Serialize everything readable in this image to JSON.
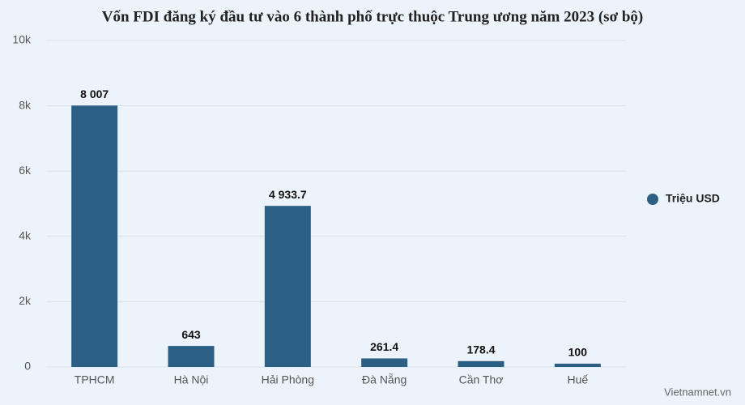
{
  "chart_data": {
    "type": "bar",
    "title": "Vốn FDI đăng ký đầu tư vào 6 thành phố trực thuộc Trung ương năm 2023 (sơ bộ)",
    "categories": [
      "TPHCM",
      "Hà Nội",
      "Hải Phòng",
      "Đà Nẵng",
      "Cần Thơ",
      "Huế"
    ],
    "series": [
      {
        "name": "Triệu USD",
        "color": "#2b5f84",
        "values": [
          8007,
          643,
          4933.7,
          261.4,
          178.4,
          100
        ],
        "value_labels": [
          "8 007",
          "643",
          "4 933.7",
          "261.4",
          "178.4",
          "100"
        ]
      }
    ],
    "ylim": [
      0,
      10000
    ],
    "yticks": [
      0,
      {
        "value": 2000,
        "label": "2k"
      },
      {
        "value": 4000,
        "label": "4k"
      },
      {
        "value": 6000,
        "label": "6k"
      },
      {
        "value": 8000,
        "label": "8k"
      },
      {
        "value": 10000,
        "label": "10k"
      }
    ],
    "grid": true,
    "legend": "right",
    "annotation": "Vietnamnet.vn"
  }
}
